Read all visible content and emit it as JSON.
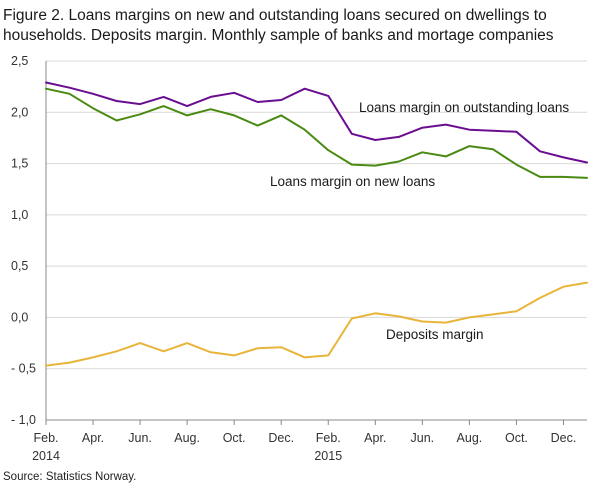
{
  "title": "Figure 2. Loans margins on new and outstanding loans secured on dwellings to households. Deposits margin. Monthly sample of banks and mortage companies",
  "source": "Source: Statistics Norway.",
  "colors": {
    "outstanding": "#6a0d91",
    "new_loans": "#4a8a13",
    "deposits": "#e8b53a",
    "grid": "#d9d9d9",
    "axis": "#888888"
  },
  "chart_data": {
    "type": "line",
    "x": [
      "2014-02",
      "2014-03",
      "2014-04",
      "2014-05",
      "2014-06",
      "2014-07",
      "2014-08",
      "2014-09",
      "2014-10",
      "2014-11",
      "2014-12",
      "2015-01",
      "2015-02",
      "2015-03",
      "2015-04",
      "2015-05",
      "2015-06",
      "2015-07",
      "2015-08",
      "2015-09",
      "2015-10",
      "2015-11",
      "2015-12",
      "2016-01"
    ],
    "x_tick_labels": [
      "Feb.",
      "Apr.",
      "Jun.",
      "Aug.",
      "Oct.",
      "Dec.",
      "Feb.",
      "Apr.",
      "Jun.",
      "Aug.",
      "Oct.",
      "Dec."
    ],
    "x_tick_months": [
      "2014-02",
      "2014-04",
      "2014-06",
      "2014-08",
      "2014-10",
      "2014-12",
      "2015-02",
      "2015-04",
      "2015-06",
      "2015-08",
      "2015-10",
      "2015-12"
    ],
    "x_year_labels": [
      {
        "label": "2014",
        "month": "2014-02"
      },
      {
        "label": "2015",
        "month": "2015-02"
      }
    ],
    "y_tick_labels": [
      "2,5",
      "2,0",
      "1,5",
      "1,0",
      "0,5",
      "0,0",
      "- 0,5",
      "- 1,0"
    ],
    "y_ticks": [
      2.5,
      2.0,
      1.5,
      1.0,
      0.5,
      0.0,
      -0.5,
      -1.0
    ],
    "ylim": [
      -1.0,
      2.5
    ],
    "grid": true,
    "series": [
      {
        "name": "Loans margin  on outstanding loans",
        "key": "outstanding",
        "values": [
          2.29,
          2.24,
          2.18,
          2.11,
          2.08,
          2.15,
          2.06,
          2.15,
          2.19,
          2.1,
          2.12,
          2.23,
          2.16,
          1.79,
          1.73,
          1.76,
          1.85,
          1.88,
          1.83,
          1.82,
          1.81,
          1.62,
          1.56,
          1.51
        ]
      },
      {
        "name": "Loans margin  on new loans",
        "key": "new_loans",
        "values": [
          2.23,
          2.18,
          2.04,
          1.92,
          1.98,
          2.06,
          1.97,
          2.03,
          1.97,
          1.87,
          1.97,
          1.83,
          1.63,
          1.49,
          1.48,
          1.52,
          1.61,
          1.57,
          1.67,
          1.64,
          1.49,
          1.37,
          1.37,
          1.36
        ]
      },
      {
        "name": "Deposits  margin",
        "key": "deposits",
        "values": [
          -0.47,
          -0.44,
          -0.39,
          -0.33,
          -0.25,
          -0.33,
          -0.25,
          -0.34,
          -0.37,
          -0.3,
          -0.29,
          -0.39,
          -0.37,
          -0.01,
          0.04,
          0.01,
          -0.04,
          -0.05,
          0.0,
          0.03,
          0.06,
          0.19,
          0.3,
          0.34
        ]
      }
    ]
  }
}
